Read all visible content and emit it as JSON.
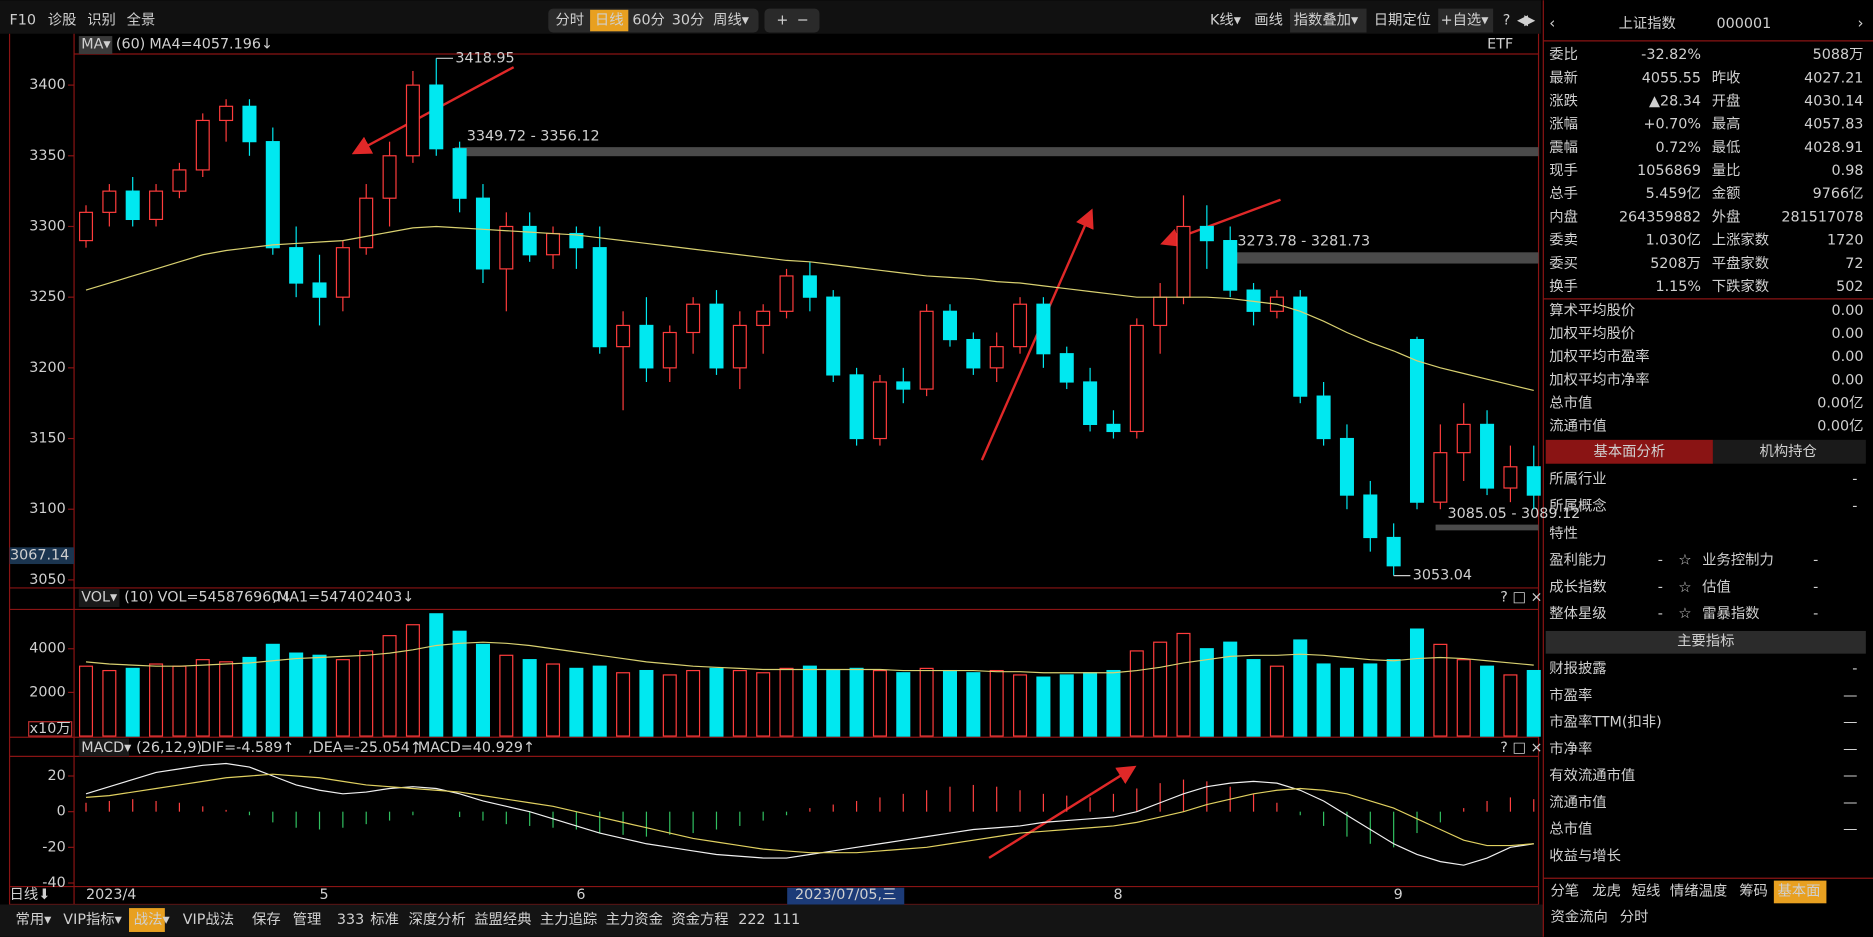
{
  "toolbar": {
    "left": [
      "F10",
      "诊股",
      "识别",
      "全景"
    ],
    "periods": [
      "分时",
      "日线",
      "60分",
      "30分",
      "周线▾"
    ],
    "zoom": [
      "+",
      "−"
    ],
    "right": [
      "K线▾",
      "画线",
      "指数叠加▾",
      "日期定位",
      "+自选▾",
      "?"
    ]
  },
  "chart_data": {
    "type": "candlestick",
    "etf": "ETF",
    "categories": [
      "2023/4",
      null,
      null,
      null,
      null,
      null,
      null,
      null,
      null,
      null,
      "5",
      null,
      null,
      null,
      null,
      null,
      null,
      null,
      null,
      null,
      null,
      "6",
      null,
      null,
      null,
      null,
      null,
      null,
      null,
      null,
      null,
      null,
      null,
      null,
      null,
      null,
      null,
      null,
      null,
      null,
      null,
      null,
      null,
      null,
      "8",
      null,
      null,
      null,
      null,
      null,
      null,
      null,
      null,
      null,
      null,
      null,
      "9",
      null,
      null,
      null,
      null,
      null,
      null
    ],
    "period_label": "日线⬇",
    "cursor_label": "2023/07/05,三",
    "cursor_price": 3067.14,
    "ylim": [
      3046,
      3422
    ],
    "yticks": [
      3050,
      3100,
      3150,
      3200,
      3250,
      3300,
      3350,
      3400
    ],
    "up_color": "#ff3c3c",
    "down_color": "#00e8f0",
    "candles": [
      [
        3290,
        3315,
        3285,
        3310
      ],
      [
        3310,
        3330,
        3300,
        3325
      ],
      [
        3325,
        3335,
        3300,
        3305
      ],
      [
        3305,
        3330,
        3300,
        3325
      ],
      [
        3325,
        3345,
        3320,
        3340
      ],
      [
        3340,
        3380,
        3335,
        3375
      ],
      [
        3375,
        3390,
        3360,
        3385
      ],
      [
        3385,
        3390,
        3350,
        3360
      ],
      [
        3360,
        3370,
        3280,
        3285
      ],
      [
        3285,
        3300,
        3250,
        3260
      ],
      [
        3260,
        3280,
        3230,
        3250
      ],
      [
        3250,
        3290,
        3240,
        3285
      ],
      [
        3285,
        3330,
        3280,
        3320
      ],
      [
        3320,
        3360,
        3300,
        3350
      ],
      [
        3350,
        3410,
        3345,
        3400
      ],
      [
        3400,
        3418.95,
        3350,
        3355
      ],
      [
        3355,
        3360,
        3310,
        3320
      ],
      [
        3320,
        3330,
        3260,
        3270
      ],
      [
        3270,
        3310,
        3240,
        3300
      ],
      [
        3300,
        3310,
        3275,
        3280
      ],
      [
        3280,
        3300,
        3270,
        3295
      ],
      [
        3295,
        3300,
        3270,
        3285
      ],
      [
        3285,
        3300,
        3210,
        3215
      ],
      [
        3215,
        3240,
        3170,
        3230
      ],
      [
        3230,
        3250,
        3190,
        3200
      ],
      [
        3200,
        3230,
        3190,
        3225
      ],
      [
        3225,
        3250,
        3210,
        3245
      ],
      [
        3245,
        3255,
        3195,
        3200
      ],
      [
        3200,
        3240,
        3185,
        3230
      ],
      [
        3230,
        3245,
        3210,
        3240
      ],
      [
        3240,
        3270,
        3235,
        3265
      ],
      [
        3265,
        3275,
        3240,
        3250
      ],
      [
        3250,
        3255,
        3190,
        3195
      ],
      [
        3195,
        3200,
        3145,
        3150
      ],
      [
        3150,
        3195,
        3145,
        3190
      ],
      [
        3190,
        3200,
        3175,
        3185
      ],
      [
        3185,
        3245,
        3180,
        3240
      ],
      [
        3240,
        3245,
        3215,
        3220
      ],
      [
        3220,
        3225,
        3195,
        3200
      ],
      [
        3200,
        3225,
        3190,
        3215
      ],
      [
        3215,
        3250,
        3210,
        3245
      ],
      [
        3245,
        3250,
        3200,
        3210
      ],
      [
        3210,
        3215,
        3185,
        3190
      ],
      [
        3190,
        3200,
        3155,
        3160
      ],
      [
        3160,
        3170,
        3150,
        3155
      ],
      [
        3155,
        3235,
        3150,
        3230
      ],
      [
        3230,
        3260,
        3210,
        3250
      ],
      [
        3250,
        3322,
        3245,
        3300
      ],
      [
        3300,
        3315,
        3270,
        3290
      ],
      [
        3290,
        3300,
        3250,
        3255
      ],
      [
        3255,
        3260,
        3230,
        3240
      ],
      [
        3240,
        3255,
        3235,
        3250
      ],
      [
        3250,
        3255,
        3175,
        3180
      ],
      [
        3180,
        3190,
        3145,
        3150
      ],
      [
        3150,
        3160,
        3100,
        3110
      ],
      [
        3110,
        3120,
        3070,
        3080
      ],
      [
        3080,
        3090,
        3053.04,
        3060
      ],
      [
        3220,
        3222,
        3100,
        3105
      ],
      [
        3105,
        3160,
        3100,
        3140
      ],
      [
        3140,
        3175,
        3120,
        3160
      ],
      [
        3160,
        3170,
        3110,
        3115
      ],
      [
        3115,
        3145,
        3105,
        3130
      ],
      [
        3130,
        3145,
        3100,
        3110
      ]
    ],
    "ma": {
      "menu": "MA▾",
      "param": "(60)",
      "label": "MA4=4057.196↓",
      "color": "#d8d070",
      "values": [
        3255,
        3260,
        3265,
        3270,
        3275,
        3280,
        3283,
        3285,
        3287,
        3288,
        3289,
        3290,
        3293,
        3296,
        3299,
        3300,
        3299,
        3298,
        3297,
        3296,
        3295,
        3294,
        3292,
        3290,
        3288,
        3286,
        3284,
        3282,
        3280,
        3278,
        3276,
        3275,
        3273,
        3271,
        3269,
        3267,
        3265,
        3264,
        3263,
        3261,
        3260,
        3258,
        3256,
        3254,
        3252,
        3250,
        3250,
        3250,
        3250,
        3249,
        3247,
        3245,
        3240,
        3233,
        3225,
        3218,
        3212,
        3205,
        3200,
        3196,
        3192,
        3188,
        3184
      ]
    },
    "annotations": {
      "high": 3418.95,
      "low": 3053.04,
      "ranges": [
        {
          "label": "3349.72 - 3356.12",
          "low": 3349.72,
          "high": 3356.12
        },
        {
          "label": "3273.78 - 3281.73",
          "low": 3273.78,
          "high": 3281.73
        },
        {
          "label": "3085.05 - 3089.12",
          "low": 3085.05,
          "high": 3089.12
        }
      ]
    },
    "volume": {
      "menu": "VOL▾",
      "param": "(10)",
      "label": "VOL=545876960↓",
      "label2": ",MA1=547402403↓",
      "unit": "x10万",
      "ylim": [
        0,
        5800
      ],
      "yticks": [
        2000,
        4000
      ],
      "ma_color": "#d8d070",
      "values": [
        3200,
        3000,
        3100,
        3300,
        3200,
        3500,
        3400,
        3600,
        4200,
        3800,
        3700,
        3500,
        3900,
        4600,
        5100,
        5600,
        4800,
        4200,
        3700,
        3500,
        3300,
        3100,
        3200,
        2900,
        3000,
        2800,
        3000,
        3100,
        3000,
        2900,
        3100,
        3200,
        3000,
        3100,
        3000,
        2900,
        3100,
        3000,
        2900,
        3000,
        2800,
        2700,
        2800,
        2900,
        3000,
        3900,
        4300,
        4700,
        4000,
        4300,
        3500,
        3200,
        4400,
        3300,
        3100,
        3300,
        3500,
        4900,
        4200,
        3500,
        3200,
        2800,
        3000
      ],
      "ma": [
        3400,
        3300,
        3250,
        3200,
        3200,
        3250,
        3300,
        3350,
        3450,
        3550,
        3600,
        3650,
        3700,
        3800,
        3950,
        4150,
        4250,
        4300,
        4250,
        4150,
        4000,
        3850,
        3700,
        3550,
        3400,
        3300,
        3200,
        3150,
        3100,
        3050,
        3050,
        3050,
        3050,
        3050,
        3050,
        3000,
        3000,
        3000,
        3000,
        2950,
        2950,
        2900,
        2900,
        2900,
        2900,
        3000,
        3150,
        3350,
        3500,
        3650,
        3700,
        3700,
        3750,
        3700,
        3600,
        3500,
        3450,
        3550,
        3600,
        3550,
        3450,
        3350,
        3250
      ]
    },
    "macd": {
      "menu": "MACD▾",
      "param": "(26,12,9)",
      "dif_label": "DIF=-4.589↑",
      "dea_label": ",DEA=-25.054↑",
      "macd_label": ",MACD=40.929↑",
      "ylim": [
        -42,
        31
      ],
      "yticks": [
        -40,
        -20,
        0,
        20
      ],
      "dif_color": "#f0f0f0",
      "dea_color": "#e0d060",
      "macd_color": "#e050e0",
      "pos_color": "#ff4040",
      "neg_color": "#30c060",
      "hist": [
        5,
        6,
        7,
        6,
        5,
        3,
        1,
        -2,
        -6,
        -9,
        -10,
        -9,
        -7,
        -5,
        -2,
        0,
        -3,
        -5,
        -7,
        -8,
        -9,
        -10,
        -12,
        -13,
        -14,
        -13,
        -12,
        -10,
        -8,
        -5,
        -2,
        2,
        4,
        6,
        8,
        10,
        12,
        14,
        15,
        14,
        12,
        10,
        9,
        8,
        10,
        13,
        16,
        18,
        17,
        14,
        10,
        5,
        -2,
        -8,
        -14,
        -18,
        -20,
        -12,
        -6,
        2,
        6,
        8,
        7
      ],
      "dif": [
        10,
        14,
        18,
        22,
        24,
        26,
        27,
        25,
        20,
        15,
        12,
        10,
        11,
        13,
        14,
        13,
        10,
        6,
        3,
        0,
        -4,
        -8,
        -12,
        -15,
        -18,
        -20,
        -22,
        -24,
        -25,
        -26,
        -26,
        -24,
        -22,
        -20,
        -18,
        -16,
        -14,
        -12,
        -10,
        -9,
        -8,
        -6,
        -5,
        -4,
        -3,
        0,
        5,
        10,
        14,
        16,
        17,
        16,
        12,
        6,
        -2,
        -10,
        -18,
        -24,
        -28,
        -30,
        -26,
        -20,
        -18
      ],
      "dea": [
        8,
        9,
        11,
        13,
        15,
        17,
        19,
        20,
        21,
        20,
        19,
        17,
        15,
        14,
        13,
        12,
        11,
        9,
        7,
        5,
        3,
        0,
        -3,
        -6,
        -9,
        -12,
        -15,
        -17,
        -19,
        -21,
        -22,
        -23,
        -23,
        -23,
        -22,
        -21,
        -20,
        -18,
        -16,
        -14,
        -12,
        -11,
        -10,
        -9,
        -8,
        -6,
        -3,
        0,
        4,
        7,
        10,
        12,
        13,
        12,
        10,
        6,
        2,
        -4,
        -10,
        -16,
        -19,
        -19,
        -18
      ]
    }
  },
  "bottom_bar": [
    "常用▾",
    "VIP指标▾",
    "战法▾",
    "VIP战法",
    "保存",
    "管理",
    "333",
    "标准",
    "深度分析",
    "益盟经典",
    "主力追踪",
    "主力资金",
    "资金方程",
    "222",
    "111"
  ],
  "quote": {
    "name": "上证指数",
    "code": "000001",
    "rows": [
      {
        "label": "委比",
        "value": "-32.82%",
        "value2": "5088万"
      },
      {
        "label": "最新",
        "value": "4055.55",
        "label2": "昨收",
        "value2": "4027.21"
      },
      {
        "label": "涨跌",
        "value": "▲28.34",
        "label2": "开盘",
        "value2": "4030.14"
      },
      {
        "label": "涨幅",
        "value": "+0.70%",
        "label2": "最高",
        "value2": "4057.83"
      },
      {
        "label": "震幅",
        "value": "0.72%",
        "label2": "最低",
        "value2": "4028.91"
      },
      {
        "label": "现手",
        "value": "1056869",
        "label2": "量比",
        "value2": "0.98"
      },
      {
        "label": "总手",
        "value": "5.459亿",
        "label2": "金额",
        "value2": "9766亿"
      },
      {
        "label": "内盘",
        "value": "264359882",
        "label2": "外盘",
        "value2": "281517078"
      },
      {
        "label": "委卖",
        "value": "1.030亿",
        "label2": "上涨家数",
        "value2": "1720"
      },
      {
        "label": "委买",
        "value": "5208万",
        "label2": "平盘家数",
        "value2": "72"
      },
      {
        "label": "换手",
        "value": "1.15%",
        "label2": "下跌家数",
        "value2": "502"
      }
    ],
    "stats": [
      {
        "label": "算术平均股价",
        "value": "0.00"
      },
      {
        "label": "加权平均股价",
        "value": "0.00"
      },
      {
        "label": "加权平均市盈率",
        "value": "0.00"
      },
      {
        "label": "加权平均市净率",
        "value": "0.00"
      },
      {
        "label": "总市值",
        "value": "0.00亿"
      },
      {
        "label": "流通市值",
        "value": "0.00亿"
      }
    ],
    "tabs": [
      "基本面分析",
      "机构持仓"
    ],
    "profile": [
      {
        "label": "所属行业",
        "value": "-"
      },
      {
        "label": "所属概念",
        "value": "-"
      },
      {
        "label": "特性"
      }
    ],
    "ratings": [
      {
        "label": "盈利能力",
        "value": "-",
        "label2": "业务控制力",
        "value2": "-"
      },
      {
        "label": "成长指数",
        "value": "-",
        "label2": "估值",
        "value2": "-"
      },
      {
        "label": "整体星级",
        "value": "-",
        "label2": "雷暴指数",
        "value2": "-"
      }
    ],
    "section": "主要指标",
    "indicators": [
      {
        "label": "财报披露",
        "value": "-"
      },
      {
        "label": "市盈率",
        "value": "—"
      },
      {
        "label": "市盈率TTM(扣非)",
        "value": "—"
      },
      {
        "label": "市净率",
        "value": "—"
      },
      {
        "label": "有效流通市值",
        "value": "—"
      },
      {
        "label": "流通市值",
        "value": "—"
      },
      {
        "label": "总市值",
        "value": "—"
      },
      {
        "label": "收益与增长"
      }
    ],
    "bottom_tabs": [
      "分笔",
      "龙虎",
      "短线",
      "情绪温度",
      "筹码",
      "基本面"
    ],
    "bottom_tabs2": [
      "资金流向",
      "分时"
    ]
  }
}
